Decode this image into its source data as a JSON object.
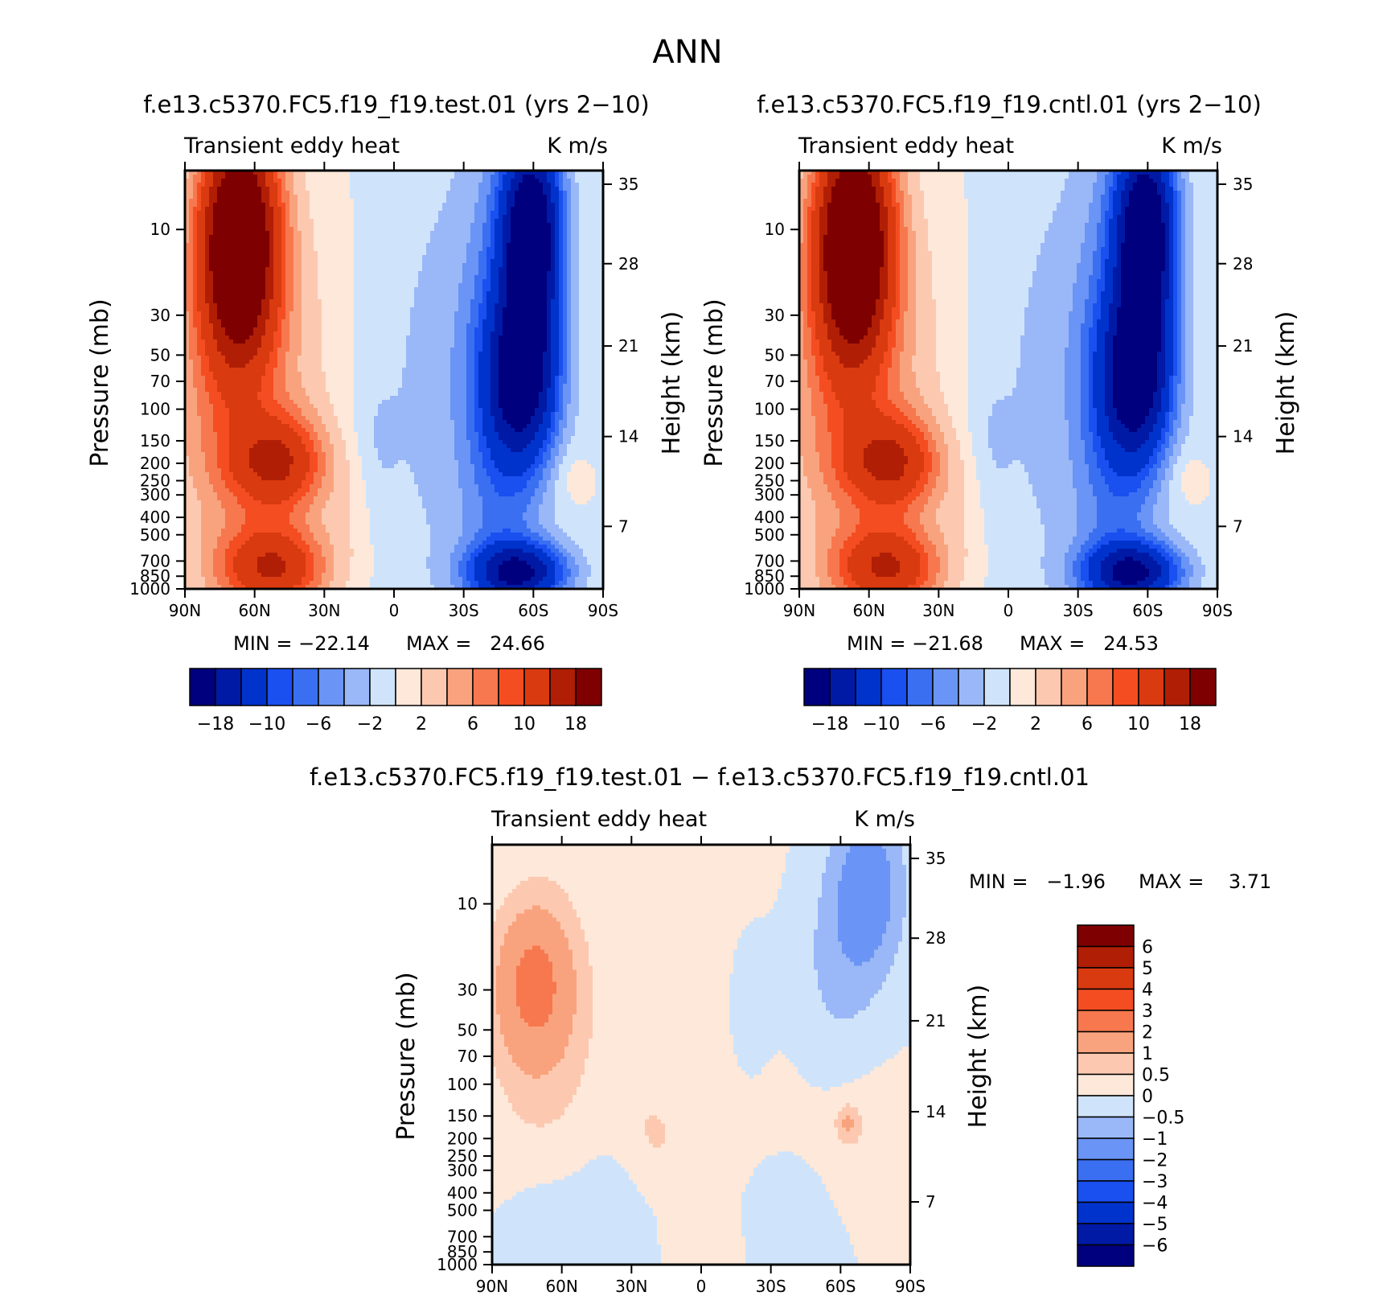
{
  "figure_title": "ANN",
  "colors": {
    "neg": [
      "#00007f",
      "#001aa6",
      "#0033cc",
      "#1a4ff0",
      "#3a6ff2",
      "#6a94f5",
      "#9ab8f7",
      "#cfe4fb"
    ],
    "pos": [
      "#fde8da",
      "#fcc9b0",
      "#f9a37e",
      "#f7784e",
      "#f44d22",
      "#d93a0f",
      "#b01e06",
      "#7f0000"
    ]
  },
  "panels": [
    {
      "title": "f.e13.c5370.FC5.f19_f19.test.01 (yrs 2−10)",
      "left_label": "Transient eddy heat",
      "right_label": "K m/s",
      "min_label": "MIN = −22.14",
      "max_label": "MAX =   24.66",
      "ylabel": "Pressure (mb)",
      "y2label": "Height (km)"
    },
    {
      "title": "f.e13.c5370.FC5.f19_f19.cntl.01 (yrs 2−10)",
      "left_label": "Transient eddy heat",
      "right_label": "K m/s",
      "min_label": "MIN = −21.68",
      "max_label": "MAX =   24.53",
      "ylabel": "Pressure (mb)",
      "y2label": "Height (km)"
    },
    {
      "title": "f.e13.c5370.FC5.f19_f19.test.01 − f.e13.c5370.FC5.f19_f19.cntl.01",
      "left_label": "Transient eddy heat",
      "right_label": "K m/s",
      "min_label": "MIN =   −1.96",
      "max_label": "MAX =    3.71",
      "ylabel": "Pressure (mb)",
      "y2label": "Height (km)"
    }
  ],
  "chart_data": [
    {
      "type": "heatmap",
      "title": "f.e13.c5370.FC5.f19_f19.test.01 (yrs 2−10)",
      "xlabel": "",
      "ylabel": "Pressure (mb)",
      "y2label": "Height (km)",
      "x_ticks": [
        "90N",
        "60N",
        "30N",
        "0",
        "30S",
        "60S",
        "90S"
      ],
      "y_ticks": [
        "10",
        "30",
        "50",
        "70",
        "100",
        "150",
        "200",
        "250",
        "300",
        "400",
        "500",
        "700",
        "850",
        "1000"
      ],
      "y_scale": "log",
      "y2_ticks": [
        "35",
        "28",
        "21",
        "14",
        "7"
      ],
      "colorbar_levels": [
        "−18",
        "−10",
        "−6",
        "−2",
        "2",
        "6",
        "10",
        "18"
      ],
      "min": -22.14,
      "max": 24.66
    },
    {
      "type": "heatmap",
      "title": "f.e13.c5370.FC5.f19_f19.cntl.01 (yrs 2−10)",
      "xlabel": "",
      "ylabel": "Pressure (mb)",
      "y2label": "Height (km)",
      "x_ticks": [
        "90N",
        "60N",
        "30N",
        "0",
        "30S",
        "60S",
        "90S"
      ],
      "y_ticks": [
        "10",
        "30",
        "50",
        "70",
        "100",
        "150",
        "200",
        "250",
        "300",
        "400",
        "500",
        "700",
        "850",
        "1000"
      ],
      "y_scale": "log",
      "y2_ticks": [
        "35",
        "28",
        "21",
        "14",
        "7"
      ],
      "colorbar_levels": [
        "−18",
        "−10",
        "−6",
        "−2",
        "2",
        "6",
        "10",
        "18"
      ],
      "min": -21.68,
      "max": 24.53
    },
    {
      "type": "heatmap",
      "title": "f.e13.c5370.FC5.f19_f19.test.01 − f.e13.c5370.FC5.f19_f19.cntl.01",
      "xlabel": "",
      "ylabel": "Pressure (mb)",
      "y2label": "Height (km)",
      "x_ticks": [
        "90N",
        "60N",
        "30N",
        "0",
        "30S",
        "60S",
        "90S"
      ],
      "y_ticks": [
        "10",
        "30",
        "50",
        "70",
        "100",
        "150",
        "200",
        "250",
        "300",
        "400",
        "500",
        "700",
        "850",
        "1000"
      ],
      "y_scale": "log",
      "y2_ticks": [
        "35",
        "28",
        "21",
        "14",
        "7"
      ],
      "colorbar_levels": [
        "6",
        "5",
        "4",
        "3",
        "2",
        "1",
        "0.5",
        "0",
        "−0.5",
        "−1",
        "−2",
        "−3",
        "−4",
        "−5",
        "−6"
      ],
      "min": -1.96,
      "max": 3.71
    }
  ]
}
